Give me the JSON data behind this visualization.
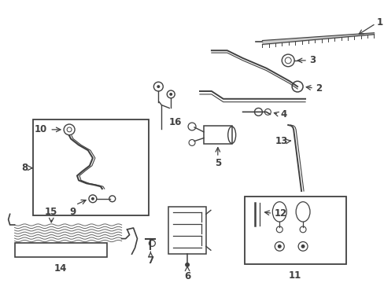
{
  "bg_color": "#ffffff",
  "line_color": "#404040",
  "fig_width": 4.89,
  "fig_height": 3.6,
  "dpi": 100
}
